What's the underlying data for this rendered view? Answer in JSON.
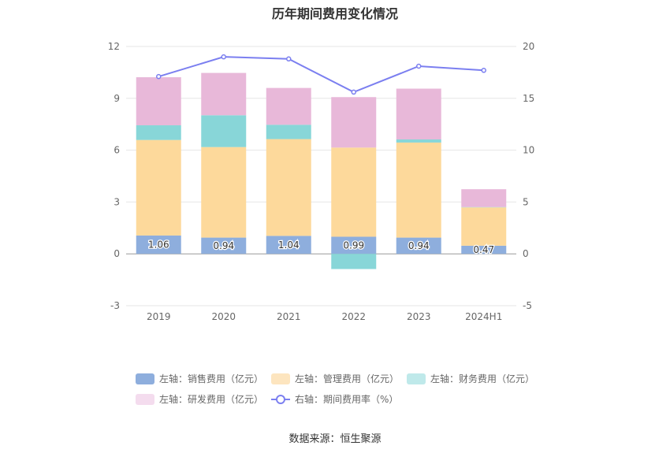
{
  "chart_data": {
    "type": "bar",
    "title": "历年期间费用变化情况",
    "categories": [
      "2019",
      "2020",
      "2021",
      "2022",
      "2023",
      "2024H1"
    ],
    "left_axis": {
      "ylim": [
        -3,
        12
      ],
      "ticks": [
        "-3",
        "0",
        "3",
        "6",
        "9",
        "12"
      ]
    },
    "right_axis": {
      "ylim": [
        -5,
        20
      ],
      "ticks": [
        "-5",
        "0",
        "5",
        "10",
        "15",
        "20"
      ]
    },
    "stacked": true,
    "series": [
      {
        "name": "左轴：销售费用（亿元）",
        "axis": "left",
        "type": "bar",
        "color": "#8eaedd",
        "values": [
          1.06,
          0.94,
          1.04,
          0.99,
          0.94,
          0.47
        ],
        "labels": [
          "1.06",
          "0.94",
          "1.04",
          "0.99",
          "0.94",
          "0.47"
        ]
      },
      {
        "name": "左轴：管理费用（亿元）",
        "axis": "left",
        "type": "bar",
        "color": "#fdd99b",
        "values": [
          5.53,
          5.24,
          5.6,
          5.16,
          5.5,
          2.22
        ]
      },
      {
        "name": "左轴：财务费用（亿元）",
        "axis": "left",
        "type": "bar",
        "color": "#88d6d8",
        "values": [
          0.85,
          1.84,
          0.83,
          -0.88,
          0.18,
          0.02
        ]
      },
      {
        "name": "左轴：研发费用（亿元）",
        "axis": "left",
        "type": "bar",
        "color": "#e8b8d9",
        "values": [
          2.78,
          2.45,
          2.13,
          2.92,
          2.94,
          1.03
        ]
      },
      {
        "name": "右轴：期间费用率（%）",
        "axis": "right",
        "type": "line",
        "color": "#7b7ff0",
        "values": [
          17.1,
          19.0,
          18.8,
          15.6,
          18.1,
          17.7
        ]
      }
    ],
    "grid": true,
    "legend_position": "bottom"
  },
  "legend": [
    {
      "label": "左轴：销售费用（亿元）",
      "color": "#8eaedd",
      "kind": "bar"
    },
    {
      "label": "左轴：管理费用（亿元）",
      "color": "#fde5bf",
      "kind": "bar"
    },
    {
      "label": "左轴：财务费用（亿元）",
      "color": "#bfe9ea",
      "kind": "bar"
    },
    {
      "label": "左轴：研发费用（亿元）",
      "color": "#f4dcee",
      "kind": "bar"
    },
    {
      "label": "右轴：期间费用率（%）",
      "color": "#7b7ff0",
      "kind": "line"
    }
  ],
  "source": "数据来源：恒生聚源"
}
